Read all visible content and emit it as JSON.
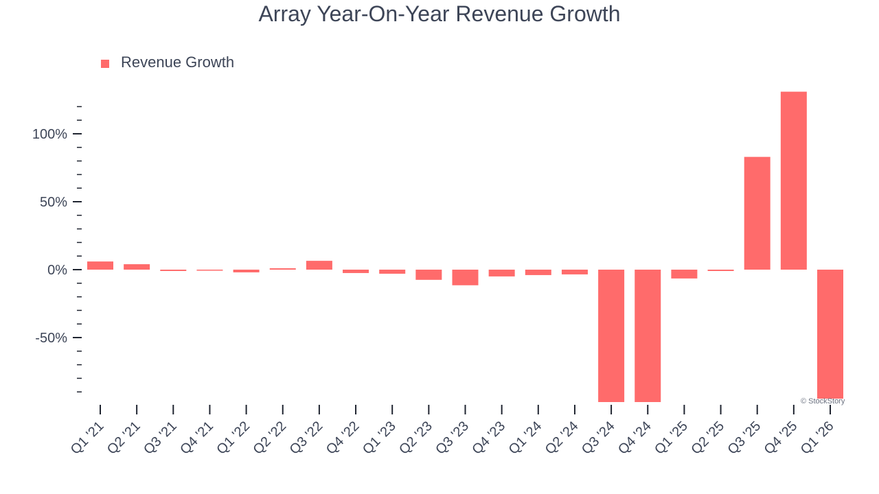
{
  "chart_data": {
    "type": "bar",
    "title": "Array Year-On-Year Revenue Growth",
    "xlabel": "",
    "ylabel": "",
    "categories": [
      "Q1 '21",
      "Q2 '21",
      "Q3 '21",
      "Q4 '21",
      "Q1 '22",
      "Q2 '22",
      "Q3 '22",
      "Q4 '22",
      "Q1 '23",
      "Q2 '23",
      "Q3 '23",
      "Q4 '23",
      "Q1 '24",
      "Q2 '24",
      "Q3 '24",
      "Q4 '24",
      "Q1 '25",
      "Q2 '25",
      "Q3 '25",
      "Q4 '25",
      "Q1 '26"
    ],
    "series": [
      {
        "name": "Revenue Growth",
        "color": "#ff6b6b",
        "values": [
          6,
          4,
          -1,
          -0.5,
          -2,
          1,
          6.5,
          -2.5,
          -3,
          -7.5,
          -11.5,
          -5,
          -4,
          -3.5,
          -98,
          -98,
          -6.5,
          -1,
          83,
          131,
          -95
        ]
      }
    ],
    "ylim": [
      -92,
      131
    ],
    "yticks": [
      -50,
      0,
      50,
      100
    ],
    "ytick_labels": [
      "-50%",
      "0%",
      "50%",
      "100%"
    ],
    "legend": "top-left",
    "grid": false
  },
  "watermark": "© StockStory",
  "colors": {
    "text": "#3d4557",
    "bar": "#ff6b6b"
  }
}
